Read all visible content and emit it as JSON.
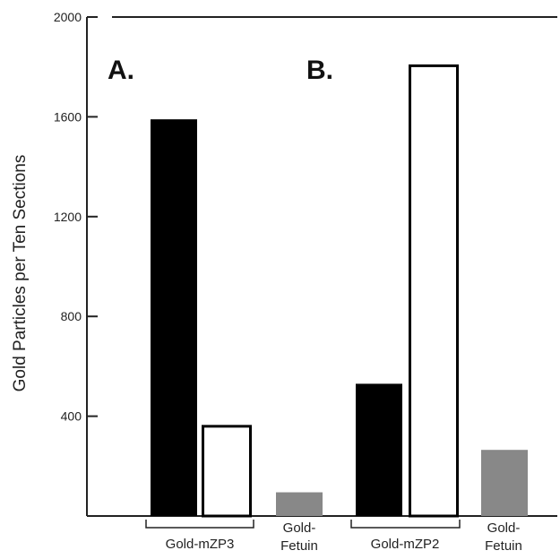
{
  "chart_data": {
    "type": "bar",
    "title": "",
    "xlabel": "",
    "ylabel": "Gold Particles per Ten Sections",
    "ylim": [
      0,
      2000
    ],
    "yticks": [
      400,
      800,
      1200,
      1600,
      2000
    ],
    "grid": false,
    "panels": [
      {
        "label": "A.",
        "bars": [
          {
            "group": "Gold-mZP3",
            "value": 1590,
            "fill": "#000000",
            "style": "solid"
          },
          {
            "group": "Gold-mZP3",
            "value": 365,
            "fill": "#ffffff",
            "style": "open"
          },
          {
            "group": "Gold-Fetuin",
            "value": 95,
            "fill": "#888888",
            "style": "solid"
          }
        ],
        "groups": [
          {
            "label": "Gold-mZP3",
            "bracket": true
          },
          {
            "label_line1": "Gold-",
            "label_line2": "Fetuin",
            "bracket": false
          }
        ]
      },
      {
        "label": "B.",
        "bars": [
          {
            "group": "Gold-mZP2",
            "value": 530,
            "fill": "#000000",
            "style": "solid"
          },
          {
            "group": "Gold-mZP2",
            "value": 1810,
            "fill": "#ffffff",
            "style": "open"
          },
          {
            "group": "Gold-Fetuin",
            "value": 265,
            "fill": "#888888",
            "style": "solid"
          }
        ],
        "groups": [
          {
            "label": "Gold-mZP2",
            "bracket": true
          },
          {
            "label_line1": "Gold-",
            "label_line2": "Fetuin",
            "bracket": false
          }
        ]
      }
    ]
  }
}
